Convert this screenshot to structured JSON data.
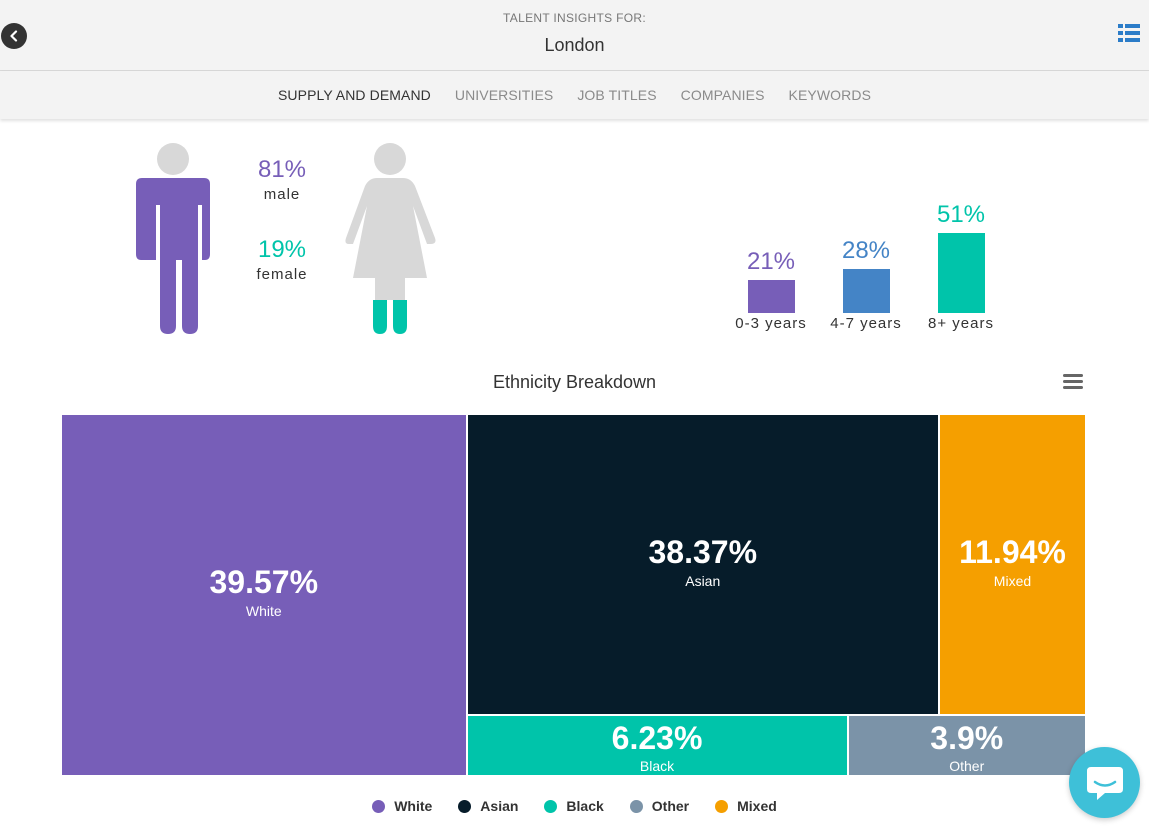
{
  "header": {
    "subtitle": "TALENT INSIGHTS FOR:",
    "title": "London"
  },
  "tabs": [
    {
      "label": "SUPPLY AND DEMAND",
      "active": true
    },
    {
      "label": "UNIVERSITIES",
      "active": false
    },
    {
      "label": "JOB TITLES",
      "active": false
    },
    {
      "label": "COMPANIES",
      "active": false
    },
    {
      "label": "KEYWORDS",
      "active": false
    }
  ],
  "gender": {
    "male_pct": "81%",
    "male_label": "male",
    "female_pct": "19%",
    "female_label": "female",
    "male_color": "#775eb8",
    "female_color": "#00c4aa"
  },
  "experience": {
    "bars": [
      {
        "value": "21%",
        "label": "0-3 years",
        "level": 21,
        "color": "#775eb8"
      },
      {
        "value": "28%",
        "label": "4-7 years",
        "level": 28,
        "color": "#4484c6"
      },
      {
        "value": "51%",
        "label": "8+ years",
        "level": 51,
        "color": "#00c4aa"
      }
    ]
  },
  "ethnicity": {
    "title": "Ethnicity Breakdown",
    "cells": [
      {
        "pct": "39.57%",
        "name": "White",
        "color": "#775eb8"
      },
      {
        "pct": "38.37%",
        "name": "Asian",
        "color": "#061c2a"
      },
      {
        "pct": "11.94%",
        "name": "Mixed",
        "color": "#f59f00"
      },
      {
        "pct": "6.23%",
        "name": "Black",
        "color": "#00c4aa"
      },
      {
        "pct": "3.9%",
        "name": "Other",
        "color": "#7b93a8"
      }
    ],
    "legend": [
      {
        "label": "White",
        "color": "#775eb8"
      },
      {
        "label": "Asian",
        "color": "#061c2a"
      },
      {
        "label": "Black",
        "color": "#00c4aa"
      },
      {
        "label": "Other",
        "color": "#7b93a8"
      },
      {
        "label": "Mixed",
        "color": "#f59f00"
      }
    ]
  },
  "chart_data": {
    "type": "heatmap",
    "title": "Ethnicity Breakdown",
    "categories": [
      "White",
      "Asian",
      "Mixed",
      "Black",
      "Other"
    ],
    "values": [
      39.57,
      38.37,
      11.94,
      6.23,
      3.9
    ]
  },
  "icons": {
    "back": "chevron-left-icon",
    "list": "list-view-icon",
    "menu": "hamburger-menu-icon",
    "chat": "chat-bubble-icon"
  }
}
